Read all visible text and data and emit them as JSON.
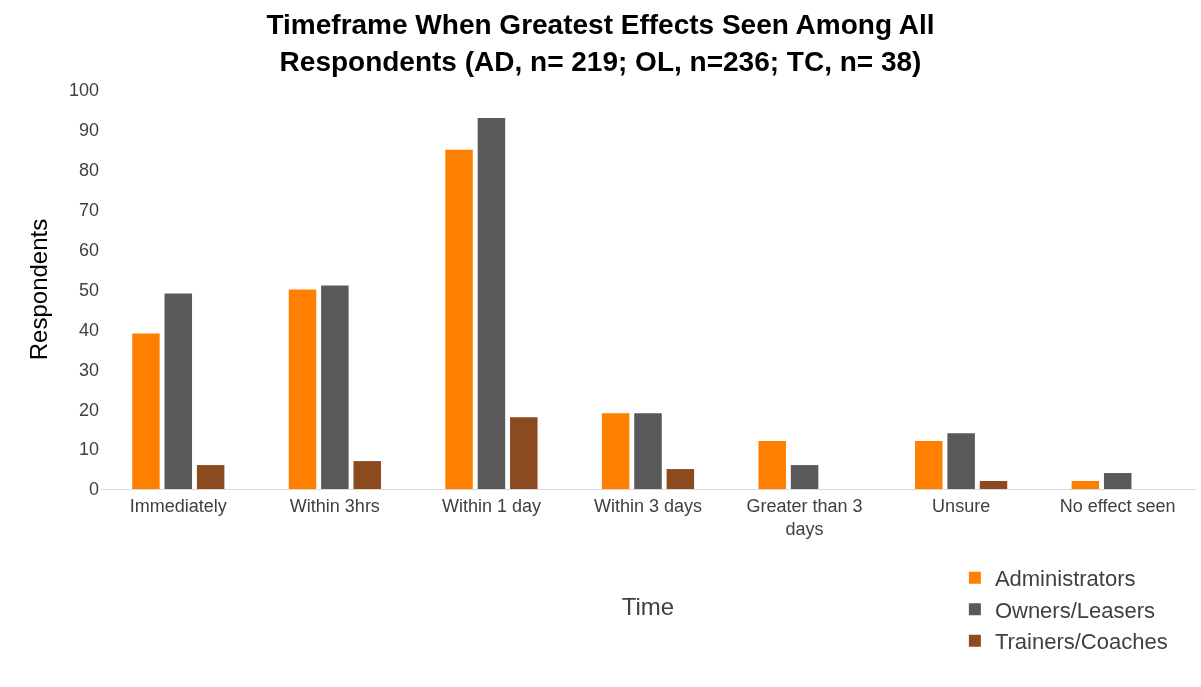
{
  "chart_data": {
    "type": "bar",
    "title": "Timeframe When Greatest Effects Seen Among All Respondents (AD, n= 219; OL, n=236; TC, n= 38)",
    "xlabel": "Time",
    "ylabel": "Respondents",
    "categories": [
      "Immediately",
      "Within 3hrs",
      "Within 1 day",
      "Within 3 days",
      "Greater than 3 days",
      "Unsure",
      "No effect seen"
    ],
    "series": [
      {
        "name": "Administrators",
        "color": "#ff8000",
        "values": [
          39,
          50,
          85,
          19,
          12,
          12,
          2
        ]
      },
      {
        "name": "Owners/Leasers",
        "color": "#595959",
        "values": [
          49,
          51,
          93,
          19,
          6,
          14,
          4
        ]
      },
      {
        "name": "Trainers/Coaches",
        "color": "#8b4b1e",
        "values": [
          6,
          7,
          18,
          5,
          0,
          2,
          0
        ]
      }
    ],
    "ylim": [
      0,
      100
    ],
    "yticks": [
      0,
      10,
      20,
      30,
      40,
      50,
      60,
      70,
      80,
      90,
      100
    ],
    "grid": false,
    "legend": "bottom right"
  }
}
